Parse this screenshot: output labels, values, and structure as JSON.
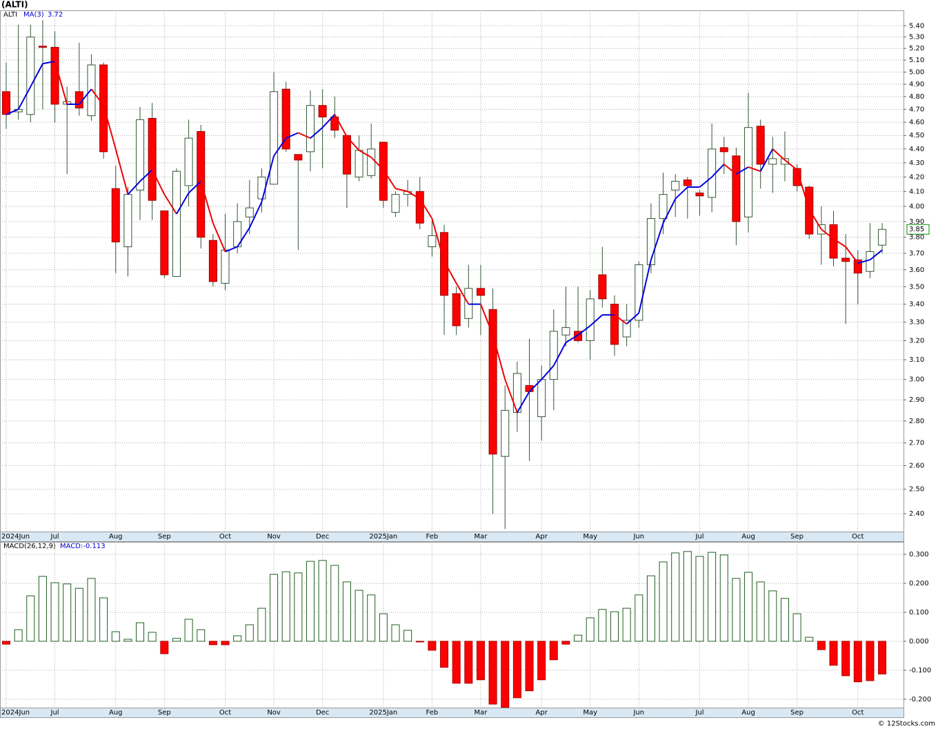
{
  "title": "(ALTI)",
  "footer": "© 12Stocks.com",
  "chart_data": [
    {
      "type": "candlestick",
      "log_scale": true,
      "grid": true,
      "categories": [
        "2024Jun",
        null,
        null,
        null,
        "Jul",
        null,
        null,
        null,
        null,
        "Aug",
        null,
        null,
        null,
        "Sep",
        null,
        null,
        null,
        null,
        "Oct",
        null,
        null,
        null,
        "Nov",
        null,
        null,
        null,
        "Dec",
        null,
        null,
        null,
        null,
        "2025Jan",
        null,
        null,
        null,
        "Feb",
        null,
        null,
        null,
        "Mar",
        null,
        null,
        null,
        null,
        "Apr",
        null,
        null,
        null,
        "May",
        null,
        null,
        null,
        "Jun",
        null,
        null,
        null,
        null,
        "Jul",
        null,
        null,
        null,
        "Aug",
        null,
        null,
        null,
        "Sep",
        null,
        null,
        null,
        null,
        "Oct",
        null,
        null
      ],
      "series": [
        {
          "name": "ALTI",
          "up_color": "#ffffff",
          "down_color": "#ff0000",
          "edge_color": "#335533",
          "last_value": 3.85,
          "open": [
            4.84,
            4.68,
            4.66,
            5.22,
            5.21,
            4.74,
            4.84,
            4.65,
            5.06,
            4.12,
            3.74,
            4.11,
            4.63,
            3.97,
            3.56,
            4.14,
            4.53,
            3.78,
            3.52,
            3.74,
            3.93,
            4.05,
            4.15,
            4.86,
            4.36,
            4.38,
            4.73,
            4.64,
            4.5,
            4.2,
            4.21,
            4.45,
            3.96,
            4.08,
            4.1,
            3.74,
            3.83,
            3.46,
            3.32,
            3.49,
            3.37,
            2.64,
            2.84,
            2.97,
            2.82,
            3.0,
            3.23,
            3.25,
            3.2,
            3.57,
            3.4,
            3.22,
            3.31,
            3.63,
            3.92,
            4.11,
            4.18,
            4.09,
            4.06,
            4.41,
            4.35,
            3.93,
            4.57,
            4.29,
            4.29,
            4.26,
            4.13,
            3.82,
            3.88,
            3.67,
            3.66,
            3.59,
            3.75
          ],
          "high": [
            5.08,
            5.41,
            5.41,
            5.45,
            5.35,
            4.88,
            5.25,
            5.15,
            5.08,
            4.28,
            4.13,
            4.72,
            4.75,
            3.97,
            4.26,
            4.62,
            4.58,
            3.82,
            3.95,
            4.02,
            4.18,
            4.26,
            5.0,
            4.92,
            4.36,
            4.85,
            4.86,
            4.8,
            4.5,
            4.5,
            4.59,
            4.45,
            4.1,
            4.18,
            4.2,
            3.91,
            3.88,
            3.5,
            3.63,
            3.63,
            3.49,
            2.97,
            3.09,
            3.21,
            3.07,
            3.37,
            3.5,
            3.5,
            3.48,
            3.74,
            3.45,
            3.4,
            3.65,
            4.02,
            4.23,
            4.22,
            4.2,
            4.11,
            4.59,
            4.49,
            4.41,
            4.83,
            4.62,
            4.49,
            4.53,
            4.29,
            4.14,
            4.0,
            3.97,
            3.82,
            3.72,
            3.89,
            3.89
          ],
          "low": [
            4.55,
            4.62,
            4.6,
            4.7,
            4.6,
            4.22,
            4.65,
            4.61,
            4.33,
            3.58,
            3.56,
            3.91,
            3.91,
            3.55,
            3.56,
            4.0,
            3.73,
            3.5,
            3.48,
            3.7,
            3.82,
            3.96,
            4.15,
            4.38,
            3.72,
            4.24,
            4.26,
            4.48,
            3.99,
            4.17,
            4.19,
            3.99,
            3.93,
            4.0,
            3.85,
            3.68,
            3.23,
            3.23,
            3.27,
            3.23,
            2.4,
            2.34,
            2.75,
            2.62,
            2.71,
            2.85,
            3.17,
            3.19,
            3.1,
            3.38,
            3.12,
            3.17,
            3.27,
            3.58,
            3.82,
            3.93,
            3.92,
            3.94,
            3.96,
            4.22,
            3.75,
            3.83,
            4.12,
            4.09,
            4.17,
            4.1,
            3.79,
            3.63,
            3.62,
            3.29,
            3.4,
            3.55,
            3.7
          ],
          "close": [
            4.66,
            4.7,
            5.3,
            5.21,
            4.74,
            4.76,
            4.71,
            5.06,
            4.38,
            3.77,
            4.08,
            4.62,
            4.04,
            3.57,
            4.24,
            4.48,
            3.8,
            3.53,
            3.72,
            3.9,
            3.99,
            4.2,
            4.84,
            4.4,
            4.32,
            4.73,
            4.64,
            4.54,
            4.22,
            4.39,
            4.4,
            4.04,
            4.08,
            4.1,
            3.89,
            3.81,
            3.45,
            3.28,
            3.49,
            3.45,
            2.65,
            2.85,
            3.03,
            2.94,
            3.0,
            3.25,
            3.27,
            3.2,
            3.43,
            3.43,
            3.18,
            3.31,
            3.63,
            3.92,
            4.08,
            4.17,
            4.14,
            4.07,
            4.4,
            4.38,
            3.9,
            4.56,
            4.29,
            4.33,
            4.33,
            4.14,
            3.82,
            3.88,
            3.67,
            3.65,
            3.58,
            3.71,
            3.85
          ]
        },
        {
          "name": "MA(3)",
          "up_color": "#0000dd",
          "down_color": "#ee0000",
          "last_value": 3.72,
          "values": [
            4.66,
            4.7,
            4.88,
            5.07,
            5.09,
            4.74,
            4.74,
            4.86,
            4.73,
            4.4,
            4.08,
            4.17,
            4.25,
            4.08,
            3.95,
            4.09,
            4.17,
            3.89,
            3.71,
            3.74,
            3.86,
            4.03,
            4.35,
            4.48,
            4.52,
            4.48,
            4.56,
            4.66,
            4.49,
            4.39,
            4.34,
            4.25,
            4.12,
            4.1,
            4.05,
            3.92,
            3.65,
            3.52,
            3.4,
            3.4,
            3.23,
            3.0,
            2.84,
            2.94,
            3.0,
            3.07,
            3.19,
            3.23,
            3.28,
            3.34,
            3.34,
            3.29,
            3.35,
            3.66,
            3.89,
            4.05,
            4.13,
            4.13,
            4.2,
            4.29,
            4.22,
            4.27,
            4.24,
            4.4,
            4.32,
            4.25,
            3.98,
            3.85,
            3.79,
            3.74,
            3.64,
            3.66,
            3.72
          ]
        }
      ],
      "ylim": [
        2.33,
        5.54
      ],
      "yticks": [
        {
          "value": 2.4,
          "label": "2.40"
        },
        {
          "value": 2.5,
          "label": "2.50"
        },
        {
          "value": 2.6,
          "label": "2.60"
        },
        {
          "value": 2.7,
          "label": "2.70"
        },
        {
          "value": 2.8,
          "label": "2.80"
        },
        {
          "value": 2.9,
          "label": "2.90"
        },
        {
          "value": 3.0,
          "label": "3.00"
        },
        {
          "value": 3.1,
          "label": "3.10"
        },
        {
          "value": 3.2,
          "label": "3.20"
        },
        {
          "value": 3.3,
          "label": "3.30"
        },
        {
          "value": 3.4,
          "label": "3.40"
        },
        {
          "value": 3.5,
          "label": "3.50"
        },
        {
          "value": 3.6,
          "label": "3.60"
        },
        {
          "value": 3.7,
          "label": "3.70"
        },
        {
          "value": 3.8,
          "label": "3.80"
        },
        {
          "value": 3.9,
          "label": "3.90"
        },
        {
          "value": 4.0,
          "label": "4.00"
        },
        {
          "value": 4.1,
          "label": "4.10"
        },
        {
          "value": 4.2,
          "label": "4.20"
        },
        {
          "value": 4.3,
          "label": "4.30"
        },
        {
          "value": 4.4,
          "label": "4.40"
        },
        {
          "value": 4.5,
          "label": "4.50"
        },
        {
          "value": 4.6,
          "label": "4.60"
        },
        {
          "value": 4.7,
          "label": "4.70"
        },
        {
          "value": 4.8,
          "label": "4.80"
        },
        {
          "value": 4.9,
          "label": "4.90"
        },
        {
          "value": 5.0,
          "label": "5.00"
        },
        {
          "value": 5.1,
          "label": "5.10"
        },
        {
          "value": 5.2,
          "label": "5.20"
        },
        {
          "value": 5.3,
          "label": "5.30"
        },
        {
          "value": 5.4,
          "label": "5.40"
        }
      ]
    },
    {
      "type": "bar",
      "title": "MACD(26,12,9)",
      "grid": true,
      "series": [
        {
          "name": "MACD:-0.113",
          "up_color": "#ffffff",
          "up_edge": "#1e5e1e",
          "down_color": "#ff0000",
          "down_edge": "#aa0000",
          "values": [
            -0.01,
            0.04,
            0.157,
            0.224,
            0.202,
            0.198,
            0.183,
            0.217,
            0.15,
            0.033,
            0.007,
            0.064,
            0.031,
            -0.043,
            0.01,
            0.076,
            0.04,
            -0.012,
            -0.012,
            0.019,
            0.057,
            0.114,
            0.231,
            0.24,
            0.236,
            0.276,
            0.279,
            0.262,
            0.205,
            0.176,
            0.16,
            0.095,
            0.057,
            0.038,
            -0.002,
            -0.031,
            -0.09,
            -0.145,
            -0.145,
            -0.133,
            -0.217,
            -0.228,
            -0.195,
            -0.171,
            -0.133,
            -0.064,
            -0.01,
            0.021,
            0.081,
            0.11,
            0.102,
            0.114,
            0.16,
            0.226,
            0.274,
            0.305,
            0.31,
            0.293,
            0.307,
            0.298,
            0.217,
            0.238,
            0.205,
            0.174,
            0.148,
            0.095,
            0.014,
            -0.029,
            -0.083,
            -0.119,
            -0.14,
            -0.136,
            -0.113
          ]
        }
      ],
      "ylim": [
        -0.229,
        0.343
      ],
      "yticks": [
        {
          "value": -0.2,
          "label": "-0.200"
        },
        {
          "value": -0.1,
          "label": "-0.100"
        },
        {
          "value": 0,
          "label": "0.000"
        },
        {
          "value": 0.1,
          "label": "0.100"
        },
        {
          "value": 0.2,
          "label": "0.200"
        },
        {
          "value": 0.3,
          "label": "0.300"
        }
      ]
    }
  ]
}
